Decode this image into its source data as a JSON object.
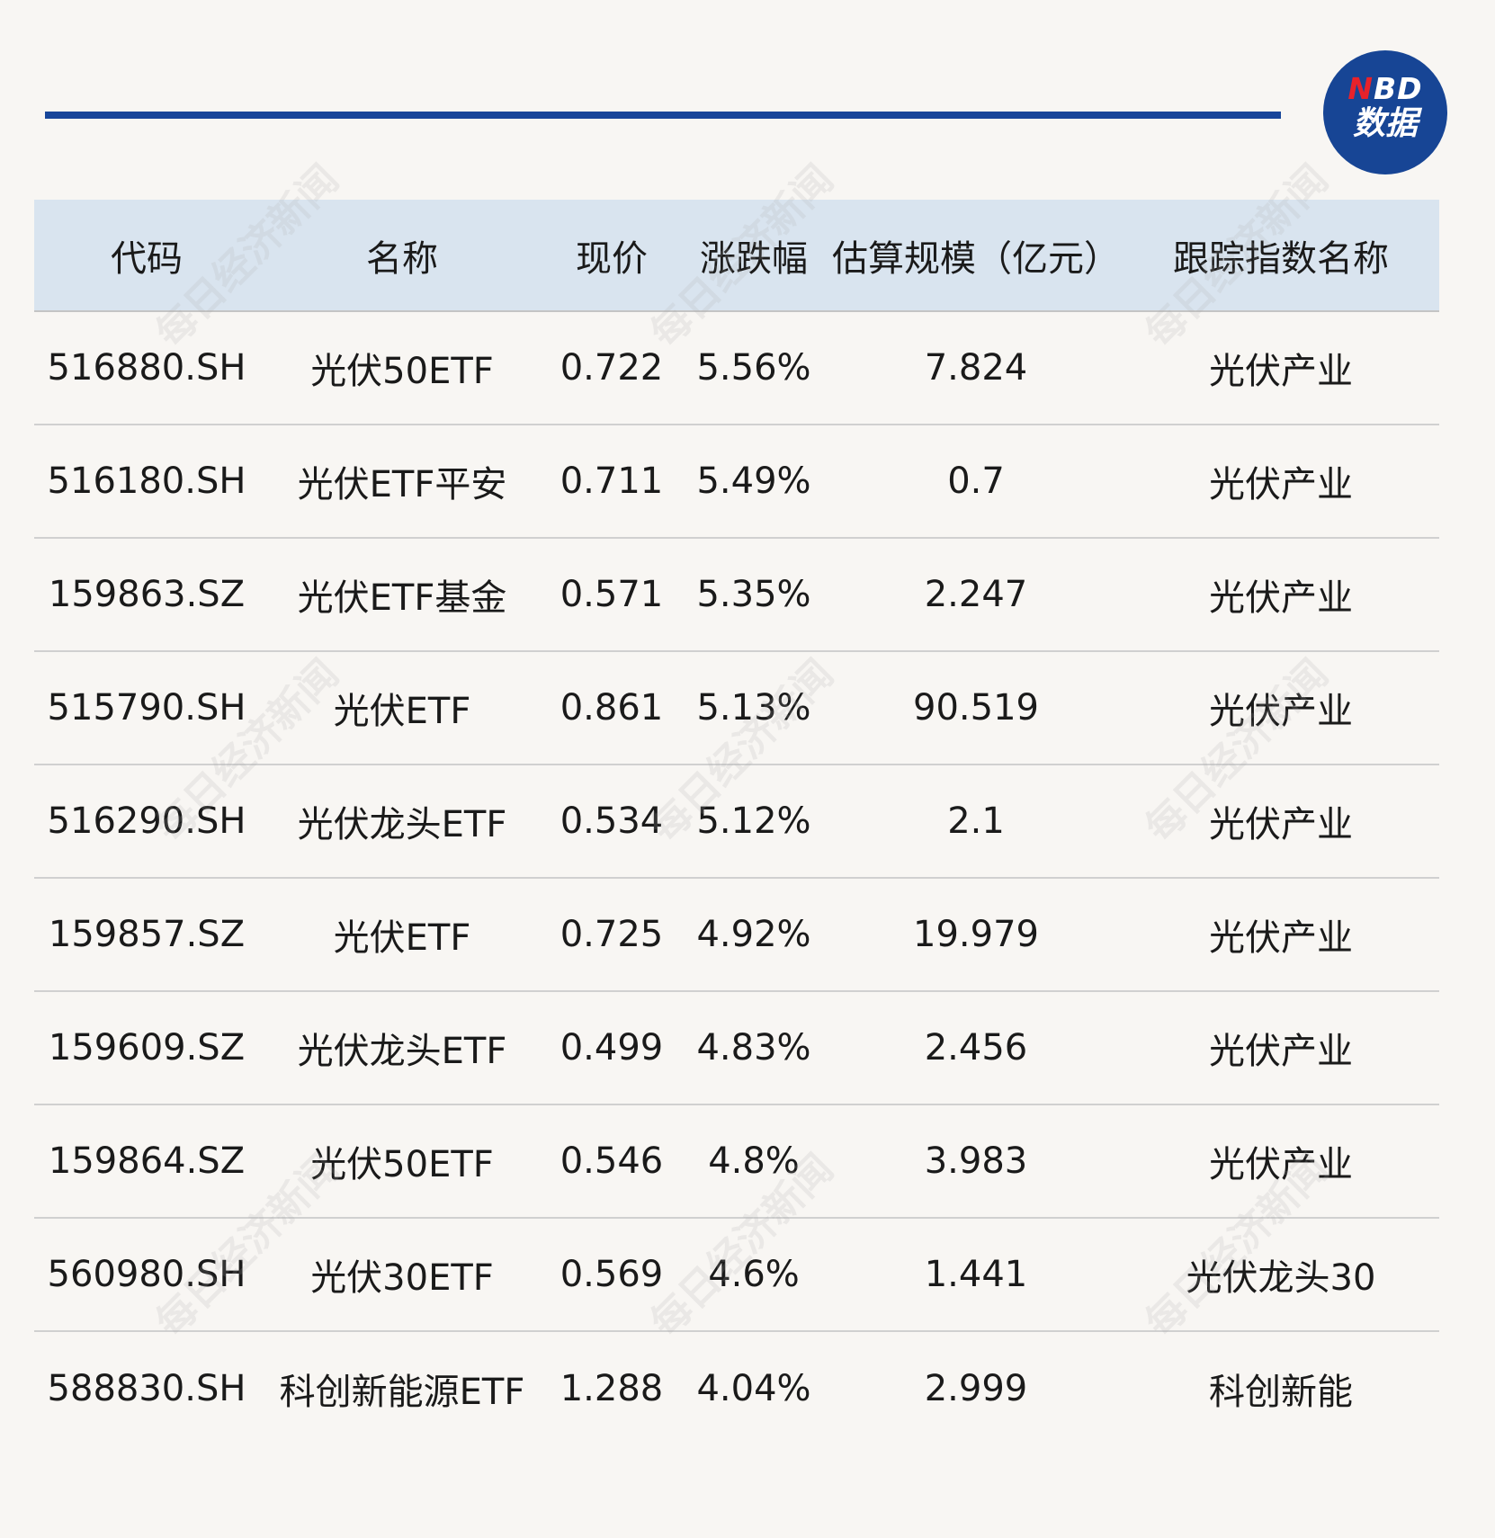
{
  "logo": {
    "line1_n": "N",
    "line1_rest": "BD",
    "line2": "数据"
  },
  "watermark_text": "每日经济新闻",
  "colors": {
    "rule": "#17469a",
    "logo_bg": "#174595",
    "logo_accent": "#e8222a",
    "header_bg": "#d9e4ef",
    "page_bg": "#f8f6f3"
  },
  "chart_data": {
    "type": "table",
    "columns": [
      "代码",
      "名称",
      "现价",
      "涨跌幅",
      "估算规模（亿元）",
      "跟踪指数名称"
    ],
    "rows": [
      [
        "516880.SH",
        "光伏50ETF",
        "0.722",
        "5.56%",
        "7.824",
        "光伏产业"
      ],
      [
        "516180.SH",
        "光伏ETF平安",
        "0.711",
        "5.49%",
        "0.7",
        "光伏产业"
      ],
      [
        "159863.SZ",
        "光伏ETF基金",
        "0.571",
        "5.35%",
        "2.247",
        "光伏产业"
      ],
      [
        "515790.SH",
        "光伏ETF",
        "0.861",
        "5.13%",
        "90.519",
        "光伏产业"
      ],
      [
        "516290.SH",
        "光伏龙头ETF",
        "0.534",
        "5.12%",
        "2.1",
        "光伏产业"
      ],
      [
        "159857.SZ",
        "光伏ETF",
        "0.725",
        "4.92%",
        "19.979",
        "光伏产业"
      ],
      [
        "159609.SZ",
        "光伏龙头ETF",
        "0.499",
        "4.83%",
        "2.456",
        "光伏产业"
      ],
      [
        "159864.SZ",
        "光伏50ETF",
        "0.546",
        "4.8%",
        "3.983",
        "光伏产业"
      ],
      [
        "560980.SH",
        "光伏30ETF",
        "0.569",
        "4.6%",
        "1.441",
        "光伏龙头30"
      ],
      [
        "588830.SH",
        "科创新能源ETF",
        "1.288",
        "4.04%",
        "2.999",
        "科创新能"
      ]
    ]
  }
}
